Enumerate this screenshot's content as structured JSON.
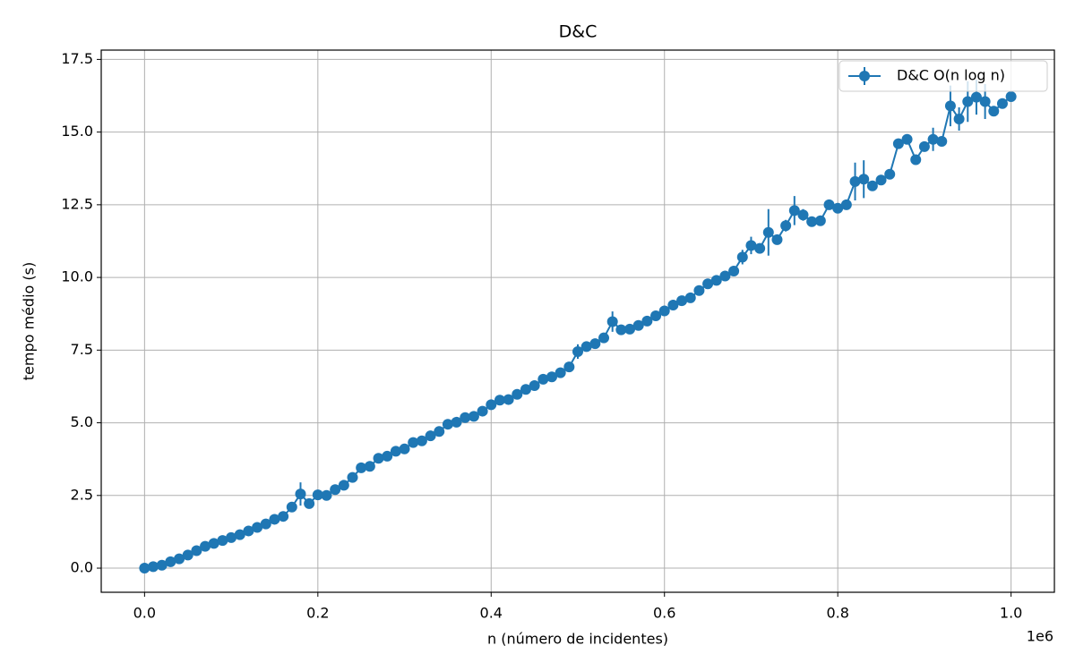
{
  "chart_data": {
    "type": "errorbar",
    "title": "D&C",
    "xlabel": "n (número de incidentes)",
    "ylabel": "tempo médio (s)",
    "x_offset_text": "1e6",
    "x": [
      0,
      10000,
      20000,
      30000,
      40000,
      50000,
      60000,
      70000,
      80000,
      90000,
      100000,
      110000,
      120000,
      130000,
      140000,
      150000,
      160000,
      170000,
      180000,
      190000,
      200000,
      210000,
      220000,
      230000,
      240000,
      250000,
      260000,
      270000,
      280000,
      290000,
      300000,
      310000,
      320000,
      330000,
      340000,
      350000,
      360000,
      370000,
      380000,
      390000,
      400000,
      410000,
      420000,
      430000,
      440000,
      450000,
      460000,
      470000,
      480000,
      490000,
      500000,
      510000,
      520000,
      530000,
      540000,
      550000,
      560000,
      570000,
      580000,
      590000,
      600000,
      610000,
      620000,
      630000,
      640000,
      650000,
      660000,
      670000,
      680000,
      690000,
      700000,
      710000,
      720000,
      730000,
      740000,
      750000,
      760000,
      770000,
      780000,
      790000,
      800000,
      810000,
      820000,
      830000,
      840000,
      850000,
      860000,
      870000,
      880000,
      890000,
      900000,
      910000,
      920000,
      930000,
      940000,
      950000,
      960000,
      970000,
      980000,
      990000,
      1000000
    ],
    "series": [
      {
        "name": "D&C O(n log n)",
        "color": "#1f77b4",
        "values": [
          0.0,
          0.05,
          0.1,
          0.22,
          0.32,
          0.45,
          0.6,
          0.75,
          0.85,
          0.95,
          1.05,
          1.15,
          1.28,
          1.4,
          1.52,
          1.68,
          1.78,
          2.1,
          2.55,
          2.22,
          2.52,
          2.5,
          2.7,
          2.85,
          3.12,
          3.45,
          3.5,
          3.78,
          3.85,
          4.02,
          4.1,
          4.32,
          4.38,
          4.55,
          4.7,
          4.95,
          5.02,
          5.18,
          5.22,
          5.4,
          5.62,
          5.78,
          5.8,
          5.98,
          6.15,
          6.28,
          6.5,
          6.58,
          6.72,
          6.92,
          7.45,
          7.62,
          7.72,
          7.92,
          8.48,
          8.2,
          8.22,
          8.35,
          8.5,
          8.68,
          8.85,
          9.05,
          9.2,
          9.3,
          9.55,
          9.78,
          9.9,
          10.05,
          10.22,
          10.7,
          11.1,
          11.0,
          11.55,
          11.3,
          11.78,
          12.3,
          12.15,
          11.92,
          11.95,
          12.5,
          12.38,
          12.5,
          13.3,
          13.38,
          13.15,
          13.35,
          13.55,
          14.6,
          14.75,
          14.05,
          14.5,
          14.75,
          14.68,
          15.9,
          15.45,
          16.05,
          16.2,
          16.05,
          15.72,
          15.98,
          16.22
        ],
        "errors": [
          0.05,
          0.05,
          0.05,
          0.05,
          0.05,
          0.05,
          0.05,
          0.05,
          0.05,
          0.05,
          0.05,
          0.05,
          0.05,
          0.05,
          0.05,
          0.05,
          0.05,
          0.1,
          0.4,
          0.1,
          0.05,
          0.05,
          0.05,
          0.1,
          0.1,
          0.05,
          0.05,
          0.05,
          0.05,
          0.05,
          0.05,
          0.05,
          0.05,
          0.05,
          0.05,
          0.05,
          0.05,
          0.05,
          0.05,
          0.05,
          0.05,
          0.05,
          0.05,
          0.05,
          0.05,
          0.05,
          0.05,
          0.05,
          0.05,
          0.1,
          0.25,
          0.1,
          0.1,
          0.1,
          0.35,
          0.1,
          0.1,
          0.05,
          0.05,
          0.05,
          0.05,
          0.05,
          0.05,
          0.1,
          0.05,
          0.05,
          0.05,
          0.05,
          0.1,
          0.25,
          0.3,
          0.1,
          0.8,
          0.1,
          0.2,
          0.5,
          0.2,
          0.1,
          0.1,
          0.15,
          0.1,
          0.1,
          0.65,
          0.65,
          0.15,
          0.1,
          0.1,
          0.15,
          0.1,
          0.15,
          0.15,
          0.4,
          0.1,
          0.7,
          0.4,
          0.7,
          0.6,
          0.6,
          0.1,
          0.1,
          0.1
        ]
      }
    ],
    "xlim": [
      -50000,
      1050000
    ],
    "ylim": [
      -0.83,
      17.82
    ],
    "xticks": [
      {
        "value": 0,
        "label": "0.0"
      },
      {
        "value": 200000,
        "label": "0.2"
      },
      {
        "value": 400000,
        "label": "0.4"
      },
      {
        "value": 600000,
        "label": "0.6"
      },
      {
        "value": 800000,
        "label": "0.8"
      },
      {
        "value": 1000000,
        "label": "1.0"
      }
    ],
    "yticks": [
      {
        "value": 0,
        "label": "0.0"
      },
      2.5,
      {
        "value": 5,
        "label": "5.0"
      },
      7.5,
      {
        "value": 10,
        "label": "10.0"
      },
      12.5,
      {
        "value": 15,
        "label": "15.0"
      },
      17.5
    ],
    "grid": true,
    "legend": "upper right"
  }
}
